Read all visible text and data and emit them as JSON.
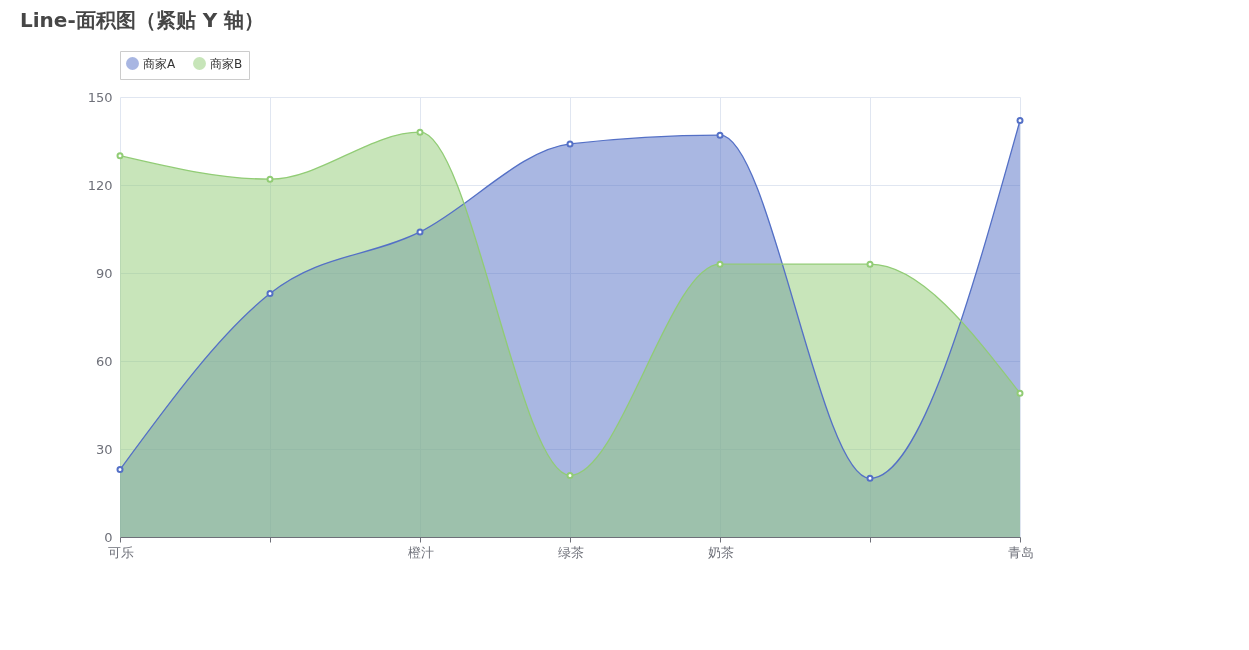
{
  "chart_data": {
    "type": "area",
    "title": "Line-面积图（紧贴 Y 轴）",
    "categories": [
      "可乐",
      null,
      "橙汁",
      "绿茶",
      "奶茶",
      null,
      "青岛"
    ],
    "series": [
      {
        "name": "商家A",
        "color": "#5470c6",
        "values": [
          23,
          83,
          104,
          134,
          137,
          20,
          142
        ]
      },
      {
        "name": "商家B",
        "color": "#91cc75",
        "values": [
          130,
          122,
          138,
          21,
          93,
          93,
          49
        ]
      }
    ],
    "ylim": [
      0,
      150
    ],
    "yticks": [
      0,
      30,
      60,
      90,
      120,
      150
    ],
    "grid": true,
    "legend": "top",
    "marker": "circle"
  }
}
